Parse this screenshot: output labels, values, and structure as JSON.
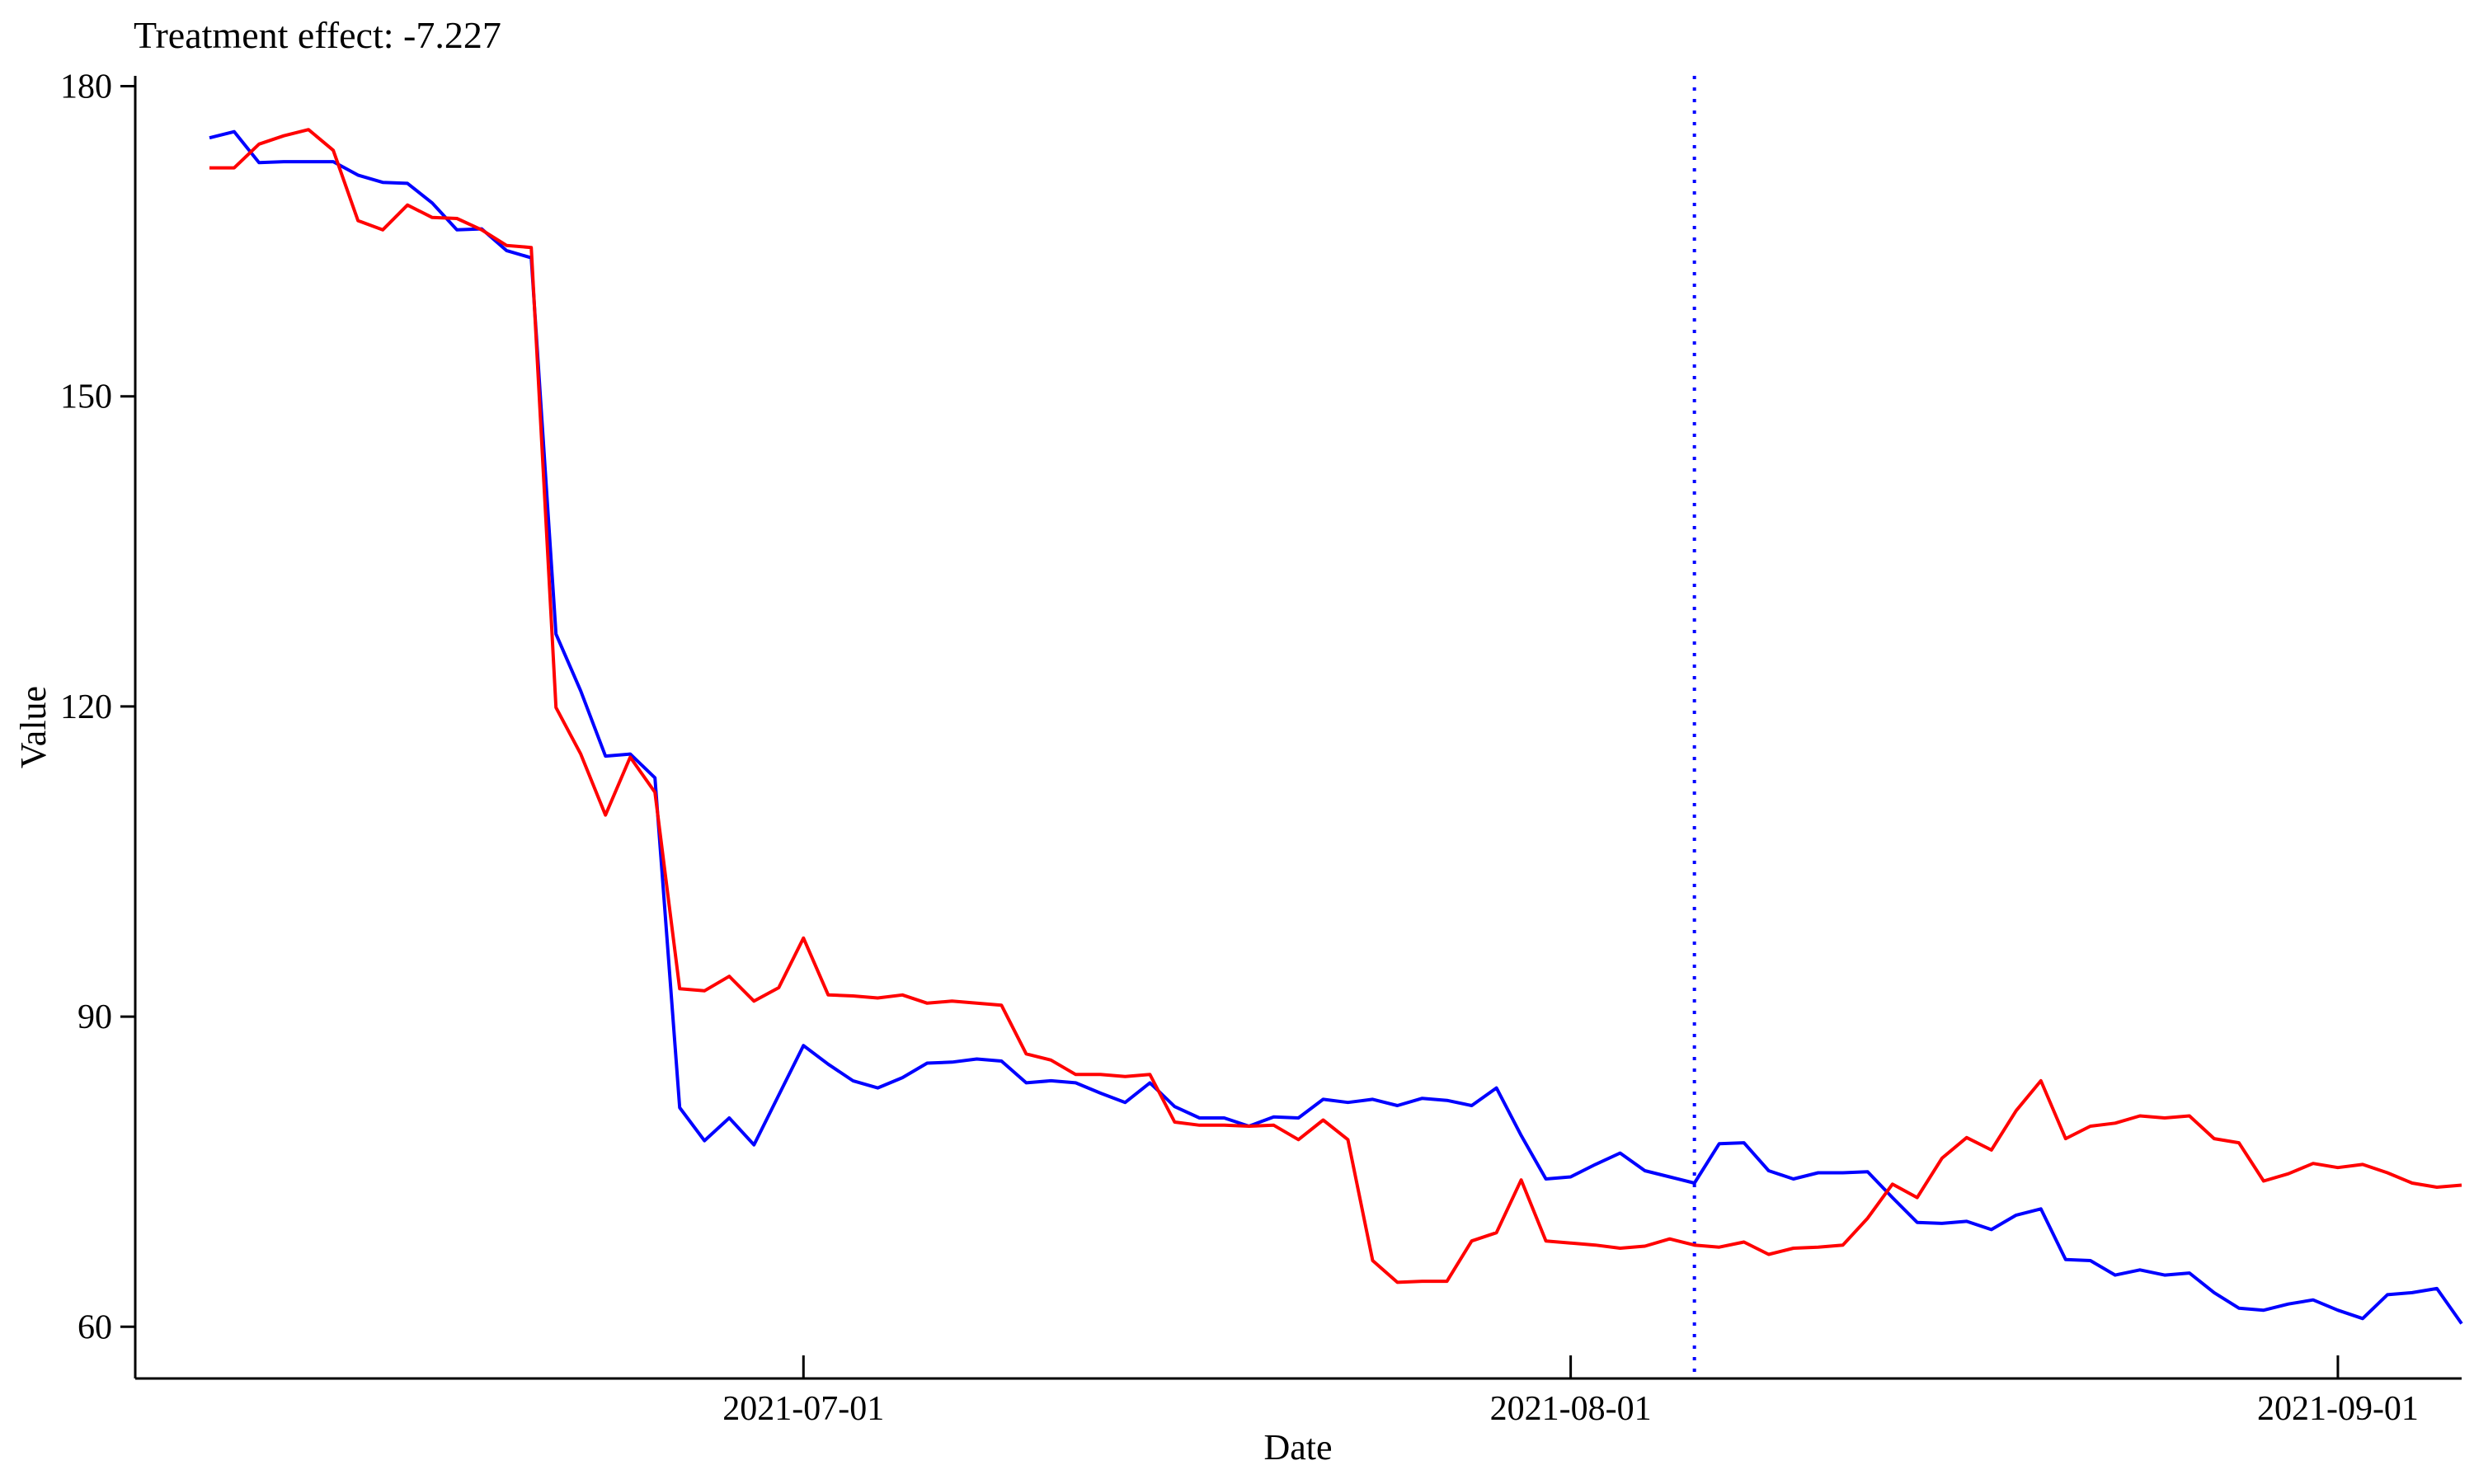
{
  "chart_data": {
    "type": "line",
    "title": "Treatment effect: -7.227",
    "xlabel": "Date",
    "ylabel": "Value",
    "xlim": [
      "2021-06-04",
      "2021-09-06"
    ],
    "ylim": [
      55,
      181
    ],
    "xticks": [
      {
        "date": "2021-07-01",
        "label": "2021-07-01"
      },
      {
        "date": "2021-08-01",
        "label": "2021-08-01"
      },
      {
        "date": "2021-09-01",
        "label": "2021-09-01"
      }
    ],
    "yticks": [
      60,
      90,
      120,
      150,
      180
    ],
    "intervention_date": "2021-08-06",
    "start_date": "2021-06-07",
    "series": [
      {
        "color": "#0000ff",
        "values": [
          175.0,
          175.6,
          172.6,
          172.7,
          172.7,
          172.7,
          171.4,
          170.7,
          170.6,
          168.7,
          166.1,
          166.2,
          164.1,
          163.4,
          127.0,
          121.5,
          115.2,
          115.4,
          113.1,
          81.2,
          78.0,
          80.2,
          77.6,
          82.4,
          87.2,
          85.4,
          83.8,
          83.1,
          84.1,
          85.5,
          85.6,
          85.9,
          85.7,
          83.6,
          83.8,
          83.6,
          82.6,
          81.7,
          83.6,
          81.3,
          80.2,
          80.2,
          79.4,
          80.3,
          80.2,
          82.0,
          81.7,
          82.0,
          81.4,
          82.1,
          81.9,
          81.4,
          83.1,
          78.5,
          74.3,
          74.5,
          75.7,
          76.8,
          75.1,
          74.5,
          73.9,
          77.7,
          77.8,
          75.1,
          74.3,
          74.9,
          74.9,
          75.0,
          72.5,
          70.1,
          70.0,
          70.2,
          69.4,
          70.8,
          71.4,
          66.5,
          66.4,
          65.0,
          65.5,
          65.0,
          65.2,
          63.3,
          61.8,
          61.6,
          62.2,
          62.6,
          61.6,
          60.8,
          63.1,
          63.3,
          63.7,
          60.3
        ]
      },
      {
        "color": "#ff0000",
        "values": [
          172.1,
          172.1,
          174.4,
          175.2,
          175.8,
          173.8,
          167.0,
          166.1,
          168.5,
          167.3,
          167.2,
          166.1,
          164.6,
          164.4,
          119.9,
          115.4,
          109.5,
          115.1,
          111.7,
          92.7,
          92.5,
          93.9,
          91.5,
          92.8,
          97.6,
          92.1,
          92.0,
          91.8,
          92.1,
          91.3,
          91.5,
          91.3,
          91.1,
          86.4,
          85.8,
          84.4,
          84.4,
          84.2,
          84.4,
          79.8,
          79.5,
          79.5,
          79.4,
          79.5,
          78.1,
          80.0,
          78.1,
          66.4,
          64.3,
          64.4,
          64.4,
          68.3,
          69.1,
          74.2,
          68.3,
          68.1,
          67.9,
          67.6,
          67.8,
          68.5,
          67.9,
          67.7,
          68.2,
          67.0,
          67.6,
          67.7,
          67.9,
          70.5,
          73.8,
          72.5,
          76.3,
          78.3,
          77.1,
          80.9,
          83.8,
          78.2,
          79.4,
          79.7,
          80.4,
          80.2,
          80.4,
          78.2,
          77.8,
          74.1,
          74.8,
          75.8,
          75.4,
          75.7,
          74.9,
          73.9,
          73.5,
          73.7
        ]
      }
    ]
  }
}
